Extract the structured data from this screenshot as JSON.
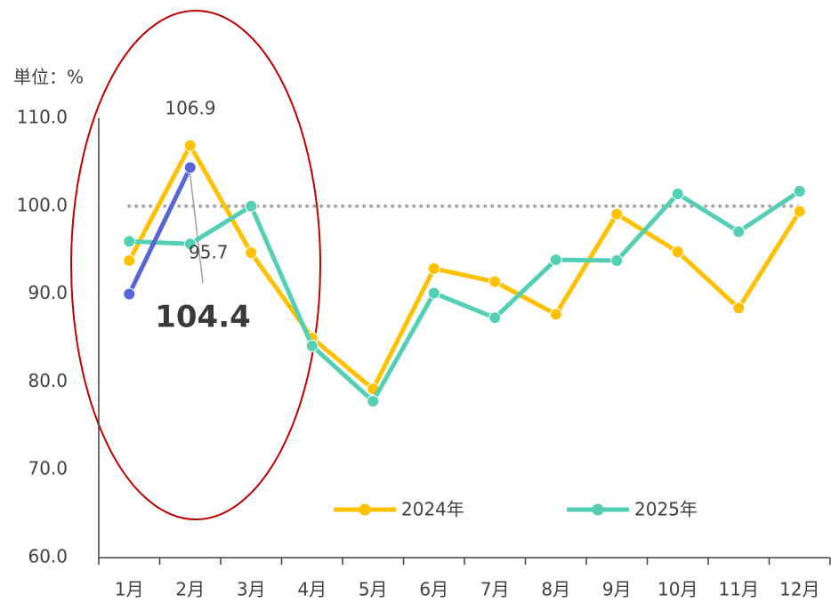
{
  "chart_data": {
    "type": "line",
    "y_unit_label": "単位：%",
    "categories": [
      "1月",
      "2月",
      "3月",
      "4月",
      "5月",
      "6月",
      "7月",
      "8月",
      "9月",
      "10月",
      "11月",
      "12月"
    ],
    "series": [
      {
        "name": "2024年",
        "color": "#ffc000",
        "values": [
          93.8,
          106.9,
          94.7,
          85.0,
          79.2,
          92.9,
          91.4,
          87.7,
          99.1,
          94.8,
          88.4,
          99.4
        ]
      },
      {
        "name": "2025年",
        "color": "#52cfb4",
        "values": [
          96.0,
          95.7,
          100.0,
          84.1,
          77.8,
          90.1,
          87.3,
          93.9,
          93.8,
          101.4,
          97.1,
          101.7
        ]
      },
      {
        "color": "#5566d6",
        "values": [
          90.0,
          104.4,
          null,
          null,
          null,
          null,
          null,
          null,
          null,
          null,
          null,
          null
        ]
      }
    ],
    "reference_line": 100,
    "ylim": [
      60,
      110
    ],
    "yticks": [
      {
        "value": 60,
        "label": "60.0"
      },
      {
        "value": 70,
        "label": "70.0"
      },
      {
        "value": 80,
        "label": "80.0"
      },
      {
        "value": 90,
        "label": "90.0"
      },
      {
        "value": 100,
        "label": "100.0"
      },
      {
        "value": 110,
        "label": "110.0"
      }
    ],
    "legend": "bottom-right"
  }
}
